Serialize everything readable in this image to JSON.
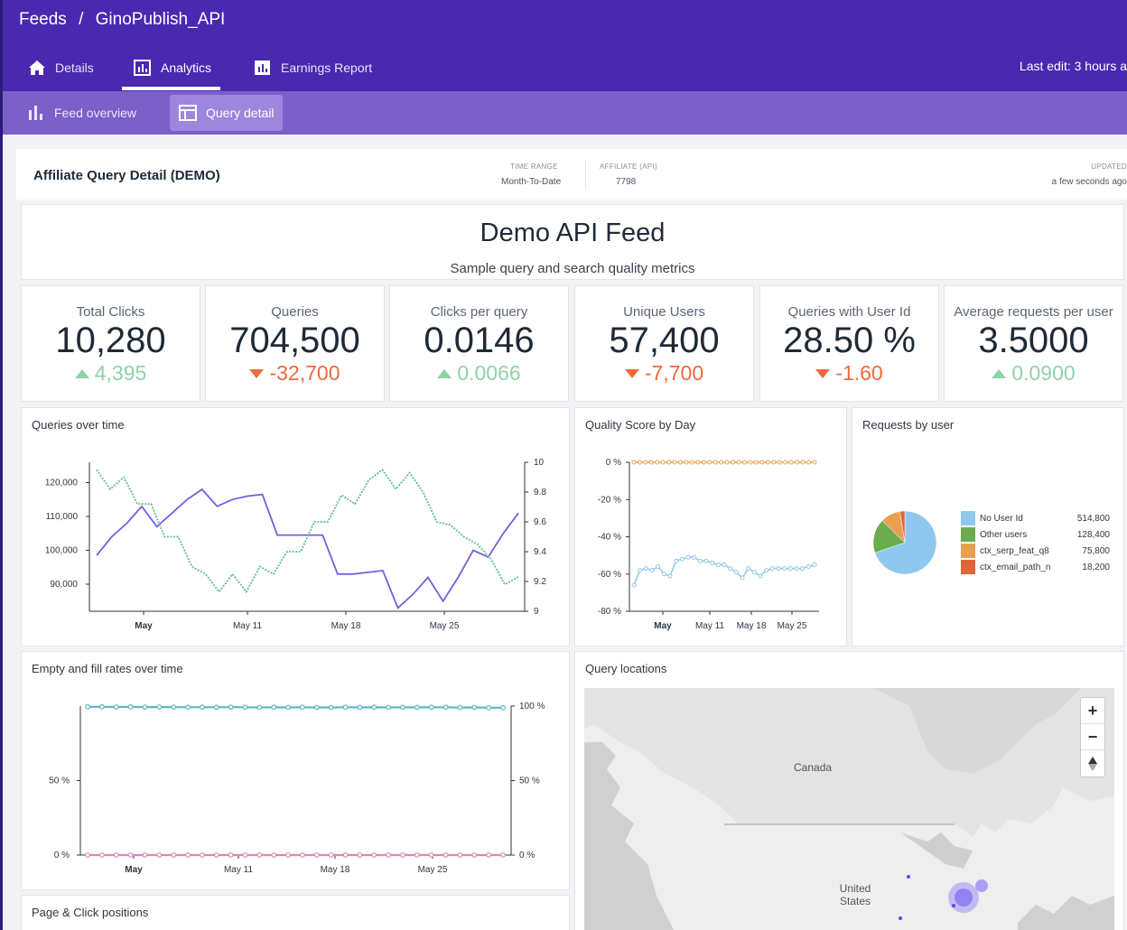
{
  "breadcrumb": {
    "root": "Feeds",
    "sep": "/",
    "current": "GinoPublish_API"
  },
  "tabs": [
    {
      "label": "Details",
      "icon": "home-icon"
    },
    {
      "label": "Analytics",
      "icon": "bar-chart-icon",
      "active": true
    },
    {
      "label": "Earnings Report",
      "icon": "bar-chart-icon"
    }
  ],
  "last_edit": "Last edit: 3 hours a",
  "subtabs": [
    {
      "label": "Feed overview",
      "icon": "bar-chart-icon"
    },
    {
      "label": "Query detail",
      "icon": "table-icon",
      "active": true
    }
  ],
  "header": {
    "title": "Affiliate Query Detail (DEMO)",
    "time_range_label": "TIME RANGE",
    "time_range_value": "Month-To-Date",
    "affiliate_label": "AFFILIATE (API)",
    "affiliate_value": "7798",
    "updated_label": "UPDATED",
    "updated_value": "a few seconds ago"
  },
  "banner": {
    "title": "Demo API Feed",
    "subtitle": "Sample query and search quality metrics"
  },
  "kpis": [
    {
      "label": "Total Clicks",
      "value": "10,280",
      "delta": "4,395",
      "direction": "up"
    },
    {
      "label": "Queries",
      "value": "704,500",
      "delta": "-32,700",
      "direction": "down"
    },
    {
      "label": "Clicks per query",
      "value": "0.0146",
      "delta": "0.0066",
      "direction": "up"
    },
    {
      "label": "Unique Users",
      "value": "57,400",
      "delta": "-7,700",
      "direction": "down"
    },
    {
      "label": "Queries with User Id",
      "value": "28.50 %",
      "delta": "-1.60",
      "direction": "down"
    },
    {
      "label": "Average requests per user",
      "value": "3.5000",
      "delta": "0.0900",
      "direction": "up"
    }
  ],
  "colors": {
    "up": "#8fd2a8",
    "down": "#ef6a3a",
    "primary": "#4a28b0",
    "secondary": "#7c5fc9"
  },
  "charts": {
    "queries_title": "Queries over time",
    "quality_title": "Quality Score by Day",
    "requests_title": "Requests by user",
    "fill_title": "Empty and fill rates over time",
    "locations_title": "Query locations",
    "page_click_title": "Page & Click positions"
  },
  "chart_data": [
    {
      "type": "line",
      "title": "Queries over time",
      "x_ticks": [
        "May",
        "May 11",
        "May 18",
        "May 25"
      ],
      "ylim": [
        82000,
        126000
      ],
      "y_ticks": [
        "120,000",
        "110,000",
        "100,000",
        "90,000"
      ],
      "ylim_right": [
        9,
        10
      ],
      "y_ticks_right": [
        "10",
        "9.8",
        "9.6",
        "9.4",
        "9.2",
        "9"
      ],
      "series": [
        {
          "axis": "left",
          "color": "#7460e0",
          "style": "solid",
          "values": [
            98500,
            104000,
            108000,
            113000,
            107000,
            111000,
            115000,
            118000,
            113000,
            115000,
            116000,
            116500,
            104500,
            104500,
            104500,
            104500,
            93000,
            93000,
            93500,
            94000,
            83000,
            87000,
            92000,
            85000,
            92000,
            100000,
            98000,
            105000,
            111000
          ]
        },
        {
          "axis": "right",
          "color": "#5cc08a",
          "style": "dotted",
          "values": [
            9.95,
            9.82,
            9.9,
            9.72,
            9.72,
            9.5,
            9.5,
            9.3,
            9.25,
            9.13,
            9.25,
            9.13,
            9.3,
            9.25,
            9.4,
            9.4,
            9.6,
            9.6,
            9.78,
            9.72,
            9.88,
            9.95,
            9.82,
            9.93,
            9.8,
            9.6,
            9.58,
            9.5,
            9.45,
            9.35,
            9.18,
            9.23
          ]
        }
      ]
    },
    {
      "type": "line",
      "title": "Quality Score by Day",
      "x_ticks": [
        "May",
        "May 11",
        "May 18",
        "May 25"
      ],
      "ylim": [
        -80,
        0
      ],
      "y_ticks": [
        "0 %",
        "-20 %",
        "-40 %",
        "-60 %",
        "-80 %"
      ],
      "series": [
        {
          "color": "#f0a050",
          "values": [
            0,
            0,
            0,
            0,
            0,
            0,
            0,
            0,
            0,
            0,
            0,
            0,
            0,
            0,
            0,
            0,
            0,
            0,
            0,
            0,
            0,
            0,
            0,
            0,
            0,
            0,
            0,
            0,
            0,
            0,
            0,
            0
          ]
        },
        {
          "color": "#8fc8ea",
          "values": [
            -66,
            -58,
            -57,
            -58,
            -56,
            -60,
            -61,
            -53,
            -52,
            -51,
            -51,
            -53,
            -53,
            -54,
            -55,
            -55,
            -57,
            -59,
            -62,
            -57,
            -59,
            -61,
            -58,
            -57,
            -57,
            -57,
            -57,
            -57,
            -57,
            -56,
            -55
          ]
        }
      ]
    },
    {
      "type": "pie",
      "title": "Requests by user",
      "categories": [
        "No User Id",
        "Other users",
        "ctx_serp_feat_q8",
        "ctx_email_path_n"
      ],
      "values": [
        514800,
        128400,
        75800,
        18200
      ],
      "value_labels": [
        "514,800",
        "128,400",
        "75,800",
        "18,200"
      ],
      "colors": [
        "#8fc8ee",
        "#6cac4e",
        "#e8a050",
        "#e0643a"
      ]
    },
    {
      "type": "line",
      "title": "Empty and fill rates over time",
      "x_ticks": [
        "May",
        "May 11",
        "May 18",
        "May 25"
      ],
      "ylim": [
        0,
        100
      ],
      "y_ticks_left": [
        "50 %",
        "0 %"
      ],
      "y_ticks_right": [
        "100 %",
        "50 %",
        "0 %"
      ],
      "series": [
        {
          "color": "#5ab8c4",
          "values": [
            99.5,
            99.5,
            99.4,
            99.5,
            99.3,
            99.4,
            99.3,
            99.2,
            99.3,
            99.2,
            99.3,
            99.2,
            99.1,
            99.2,
            99.1,
            99.2,
            99.1,
            99.1,
            99.2,
            99.1,
            99.2,
            99.1,
            99.2,
            99.1,
            99.2,
            99.2,
            99.0,
            99.1,
            98.9,
            98.9
          ]
        },
        {
          "color": "#d48ab8",
          "values": [
            0,
            0,
            0,
            0,
            0,
            0,
            0,
            0,
            0,
            0,
            0,
            0,
            0,
            0,
            0,
            0,
            0,
            0,
            0,
            0,
            0,
            0,
            0,
            0,
            0,
            0,
            0,
            0,
            0,
            0
          ]
        }
      ]
    }
  ],
  "map": {
    "labels": [
      "Canada",
      "United States"
    ],
    "zoom_in": "+",
    "zoom_out": "−"
  }
}
